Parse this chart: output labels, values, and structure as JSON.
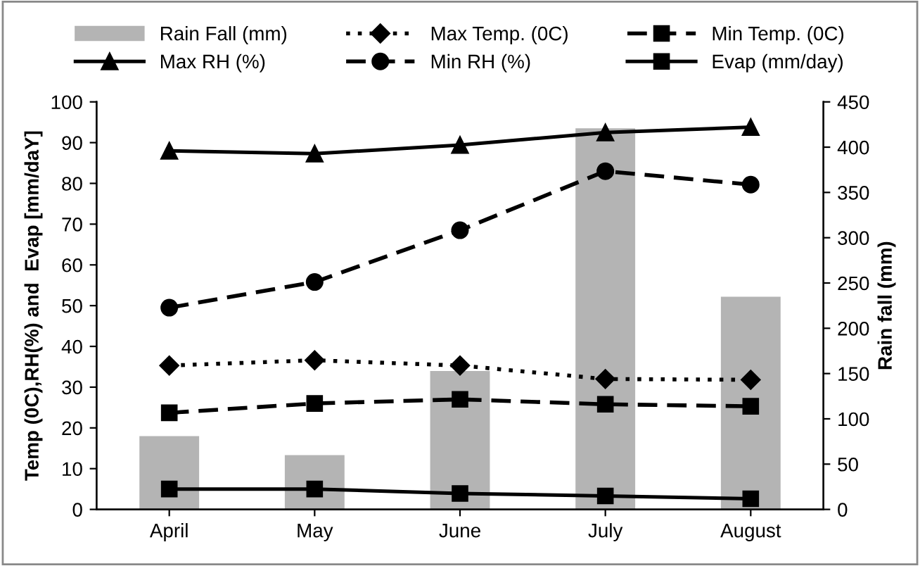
{
  "chart_data": {
    "type": "line",
    "categories": [
      "April",
      "May",
      "June",
      "July",
      "August"
    ],
    "ylabel": "Temp (0C),RH(%) and  Evap [mm/daY]",
    "y2label": "Rain fall (mm)",
    "ylim": [
      0,
      100
    ],
    "yticks": [
      0,
      10,
      20,
      30,
      40,
      50,
      60,
      70,
      80,
      90,
      100
    ],
    "y2lim": [
      0,
      450
    ],
    "y2ticks": [
      0,
      50,
      100,
      150,
      200,
      250,
      300,
      350,
      400,
      450
    ],
    "legend": "top",
    "grid": false,
    "series": [
      {
        "name": "Rain Fall (mm)",
        "type": "bar",
        "axis": "y2",
        "color": "#b4b4b4",
        "values": [
          80,
          59,
          152,
          420,
          234
        ]
      },
      {
        "name": "Max Temp. (0C)",
        "color": "#000000",
        "marker": "diamond",
        "line_style": "dotted",
        "values": [
          35.3,
          36.6,
          35.3,
          32,
          31.8
        ]
      },
      {
        "name": "Min Temp. (0C)",
        "color": "#000000",
        "marker": "square",
        "line_style": "dashed",
        "values": [
          23.7,
          26,
          27,
          25.8,
          25.3
        ]
      },
      {
        "name": "Max RH (%)",
        "color": "#000000",
        "marker": "triangle",
        "line_style": "solid",
        "values": [
          88,
          87.3,
          89.4,
          92.5,
          93.8
        ]
      },
      {
        "name": "Min RH (%)",
        "color": "#000000",
        "marker": "circle",
        "line_style": "dashed",
        "values": [
          49.5,
          55.8,
          68.5,
          83,
          79.7
        ]
      },
      {
        "name": "Evap (mm/day)",
        "color": "#000000",
        "marker": "square",
        "line_style": "solid",
        "values": [
          5,
          5,
          3.9,
          3.3,
          2.6
        ]
      }
    ]
  }
}
